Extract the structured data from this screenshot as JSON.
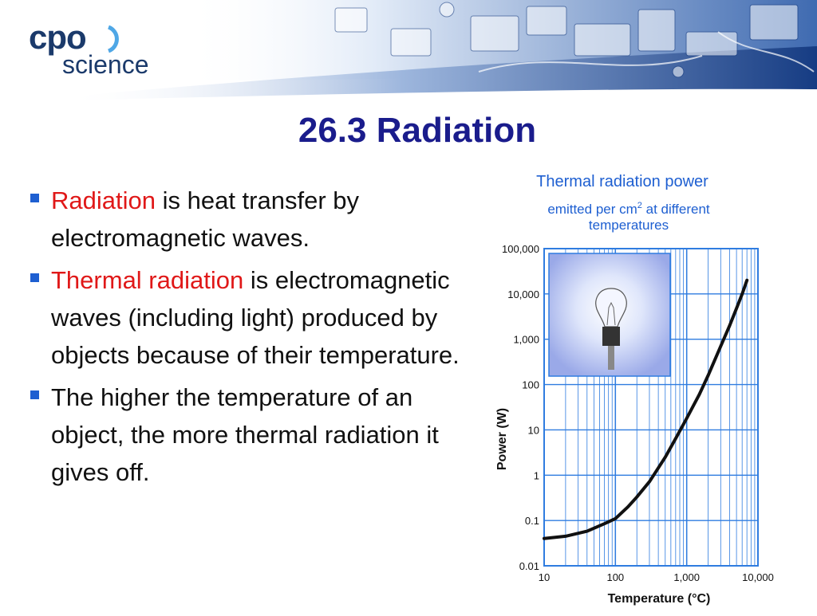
{
  "logo": {
    "cpo": "cpo",
    "science": "science"
  },
  "slide_title": "26.3 Radiation",
  "bullets": [
    {
      "highlight": "Radiation",
      "rest": " is heat transfer by electromagnetic waves."
    },
    {
      "highlight": "Thermal radiation",
      "rest": " is electromagnetic waves (including light) produced by objects because of their temperature."
    },
    {
      "highlight": "",
      "rest": "The higher the temperature of an object, the more thermal radiation it gives off."
    }
  ],
  "colors": {
    "title": "#1a1c8c",
    "highlight": "#e01818",
    "bullet_mark": "#1e5fd1",
    "chart_text": "#1e5fd1",
    "grid": "#2f7ce0",
    "curve": "#111111"
  },
  "icons": {
    "chart_inset": "light-bulb-icon"
  },
  "chart_data": {
    "type": "line",
    "title": "Thermal radiation power",
    "subtitle_line1_prefix": "emitted per cm",
    "subtitle_superscript": "2",
    "subtitle_line1_suffix": " at different",
    "subtitle_line2": "temperatures",
    "xlabel": "Temperature (°C)",
    "ylabel": "Power (W)",
    "xscale": "log",
    "yscale": "log",
    "xlim": [
      10,
      10000
    ],
    "ylim": [
      0.01,
      100000
    ],
    "x_ticks": [
      "10",
      "100",
      "1,000",
      "10,000"
    ],
    "y_ticks": [
      "0.01",
      "0.1",
      "1",
      "10",
      "100",
      "1,000",
      "10,000",
      "100,000"
    ],
    "grid": true,
    "series": [
      {
        "x": [
          10,
          20,
          40,
          70,
          100,
          150,
          200,
          300,
          500,
          700,
          1000,
          1500,
          2000,
          3000,
          4000,
          5000,
          6000,
          7000
        ],
        "y": [
          0.04,
          0.045,
          0.058,
          0.085,
          0.11,
          0.2,
          0.33,
          0.72,
          2.5,
          6.4,
          18,
          60,
          160,
          700,
          2000,
          4800,
          10000,
          20000
        ]
      }
    ]
  }
}
